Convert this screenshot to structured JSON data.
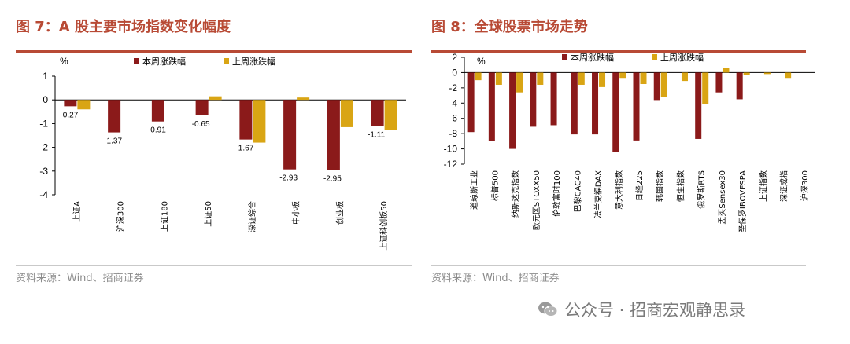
{
  "figures": [
    {
      "title": "图 7：A 股主要市场指数变化幅度",
      "source": "资料来源：Wind、招商证券"
    },
    {
      "title": "图 8：全球股票市场走势",
      "source": "资料来源：Wind、招商证券"
    }
  ],
  "watermark": {
    "text": "公众号 · 招商宏观静思录"
  },
  "colors": {
    "accent": "#b84a35",
    "this_week": "#8b1a1a",
    "last_week": "#d9a514"
  },
  "chart_data": [
    {
      "type": "bar",
      "ylabel": "%",
      "ylim": [
        -4,
        1
      ],
      "yticks": [
        "1",
        "0",
        "-1",
        "-2",
        "-3",
        "-4"
      ],
      "categories": [
        "上证A",
        "沪深300",
        "上证180",
        "上证50",
        "深证综合",
        "中小板",
        "创业板",
        "上证科创板50"
      ],
      "series": [
        {
          "name": "本周涨跌幅",
          "values": [
            -0.27,
            -1.37,
            -0.91,
            -0.65,
            -1.67,
            -2.93,
            -2.95,
            -1.11
          ]
        },
        {
          "name": "上周涨跌幅",
          "values": [
            -0.4,
            0.0,
            0.0,
            0.15,
            -1.8,
            0.1,
            -1.15,
            -1.28
          ]
        }
      ],
      "data_labels": [
        "-0.27",
        "-1.37",
        "-0.91",
        "-0.65",
        "-1.67",
        "-2.93",
        "-2.95",
        "-1.11"
      ],
      "legend": "top"
    },
    {
      "type": "bar",
      "ylabel": "%",
      "ylim": [
        -12,
        2
      ],
      "yticks": [
        "2",
        "0",
        "-2",
        "-4",
        "-6",
        "-8",
        "-10",
        "-12"
      ],
      "categories": [
        "道琼斯工业",
        "标普500",
        "纳斯达克指数",
        "欧元区STOXX50",
        "伦敦富时100",
        "巴黎CAC40",
        "法兰克福DAX",
        "意大利指数",
        "日经225",
        "韩国指数",
        "恒生指数",
        "俄罗斯RTS",
        "孟买Sensex30",
        "圣保罗IBOVESPA",
        "上证指数",
        "深证成指",
        "沪深300"
      ],
      "series": [
        {
          "name": "本周涨跌幅",
          "values": [
            -7.8,
            -9.0,
            -10.0,
            -7.1,
            -6.9,
            -8.1,
            -8.1,
            -10.4,
            -8.9,
            -3.6,
            0.0,
            -8.7,
            -2.6,
            -3.5,
            0.0,
            0.0,
            0.0
          ]
        },
        {
          "name": "上周涨跌幅",
          "values": [
            -1.0,
            -1.6,
            -2.6,
            -1.6,
            0.0,
            -1.6,
            -1.9,
            -0.7,
            -1.5,
            -3.2,
            -1.1,
            -4.1,
            0.6,
            -0.3,
            -0.2,
            -0.7,
            0.0
          ]
        }
      ],
      "legend": "top"
    }
  ]
}
